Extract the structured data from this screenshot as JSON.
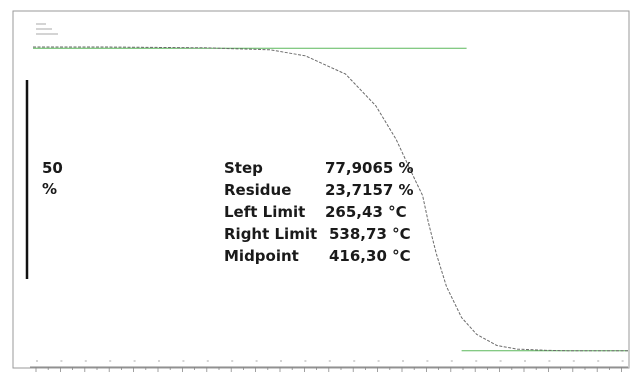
{
  "chart_data": {
    "type": "line",
    "title": "",
    "xlabel": "",
    "ylabel": "",
    "curve": {
      "x": [
        30,
        60,
        100,
        150,
        200,
        265,
        300,
        340,
        370,
        390,
        400,
        410,
        416.3,
        422,
        430,
        440,
        455,
        470,
        490,
        510,
        538,
        560,
        600,
        620
      ],
      "y": [
        100,
        100,
        100,
        99.9,
        99.8,
        99.3,
        97.8,
        93.2,
        85.2,
        76.8,
        71.4,
        66.0,
        62.7,
        56.0,
        48.0,
        39.8,
        32.0,
        27.8,
        25.0,
        24.1,
        23.8,
        23.7,
        23.7,
        23.7
      ]
    },
    "left_limit_line": {
      "x": [
        30,
        460
      ],
      "y": [
        99.7,
        99.7
      ]
    },
    "right_limit_line": {
      "x": [
        455,
        620
      ],
      "y": [
        23.7,
        23.7
      ]
    },
    "scale_bar": {
      "value": "50",
      "unit": "%"
    },
    "results": [
      {
        "label": "Step",
        "value": "77,9065 %"
      },
      {
        "label": "Residue",
        "value": "23,7157 %"
      },
      {
        "label": "Left Limit",
        "value": "265,43 °C"
      },
      {
        "label": "Right Limit",
        "value": "538,73 °C"
      },
      {
        "label": "Midpoint",
        "value": "416,30 °C"
      }
    ],
    "colors": {
      "curve": "#6b6b6b",
      "limit_lines": "#5cb85c",
      "frame": "#9a9a9a",
      "scale_bar": "#111111"
    }
  }
}
